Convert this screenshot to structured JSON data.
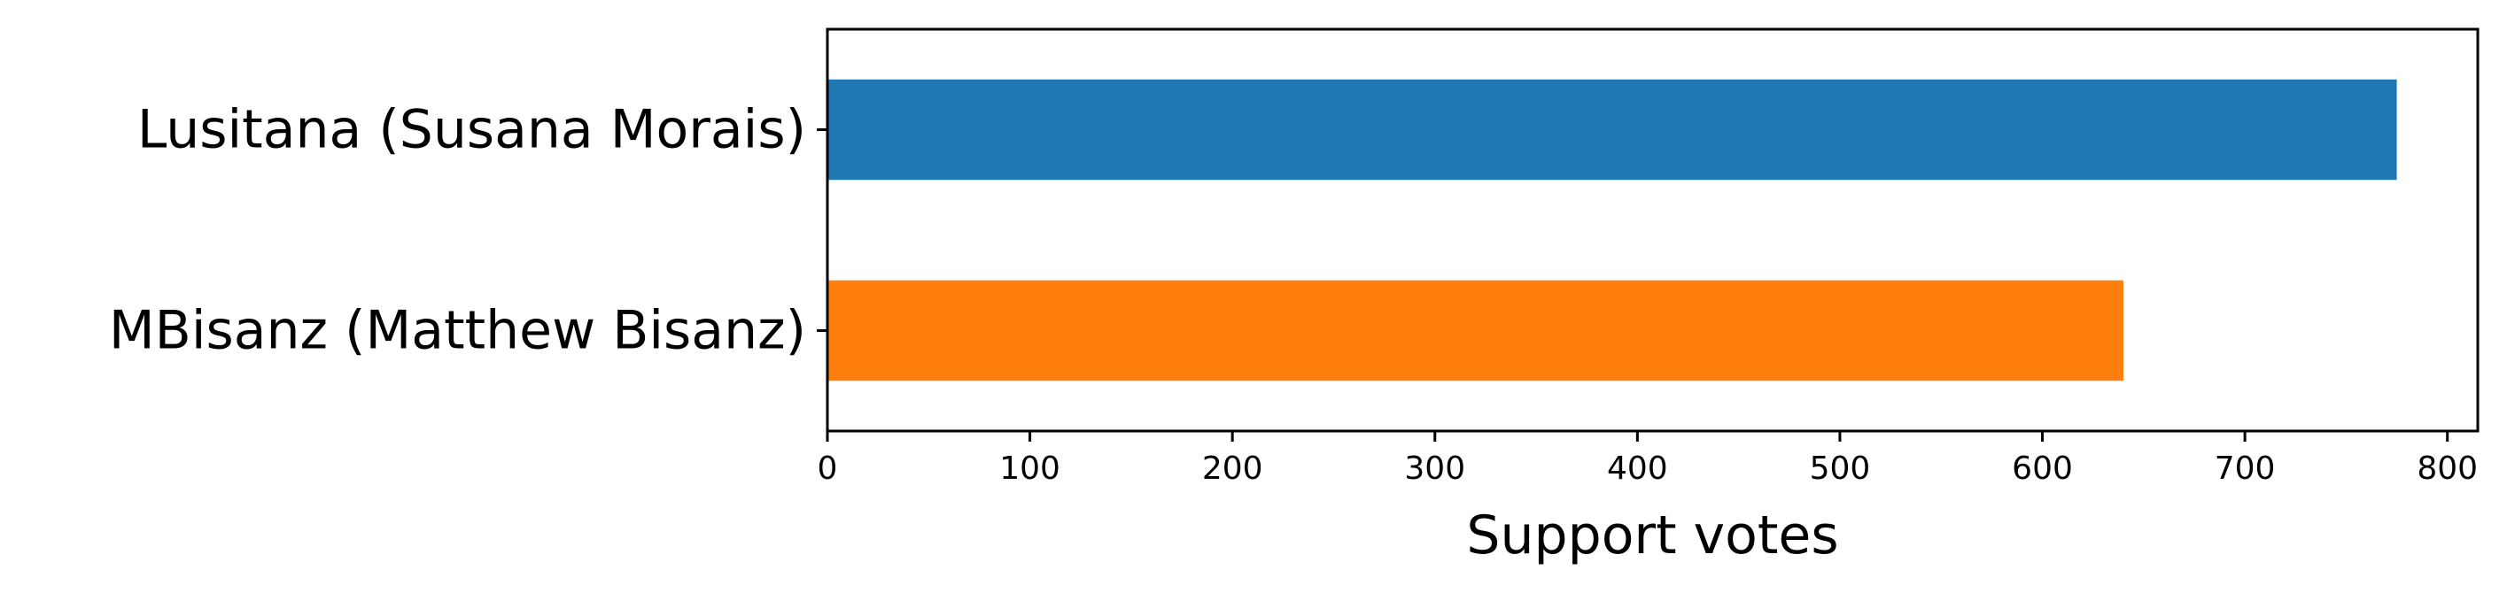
{
  "chart_data": {
    "type": "bar",
    "orientation": "horizontal",
    "categories": [
      "Lusitana (Susana Morais)",
      "MBisanz (Matthew Bisanz)"
    ],
    "values": [
      775,
      640
    ],
    "colors": [
      "#1f77b4",
      "#ff7f0e"
    ],
    "xlabel": "Support votes",
    "ylabel": "",
    "xlim": [
      0,
      815
    ],
    "xticks": [
      0,
      100,
      200,
      300,
      400,
      500,
      600,
      700,
      800
    ],
    "grid": false
  }
}
